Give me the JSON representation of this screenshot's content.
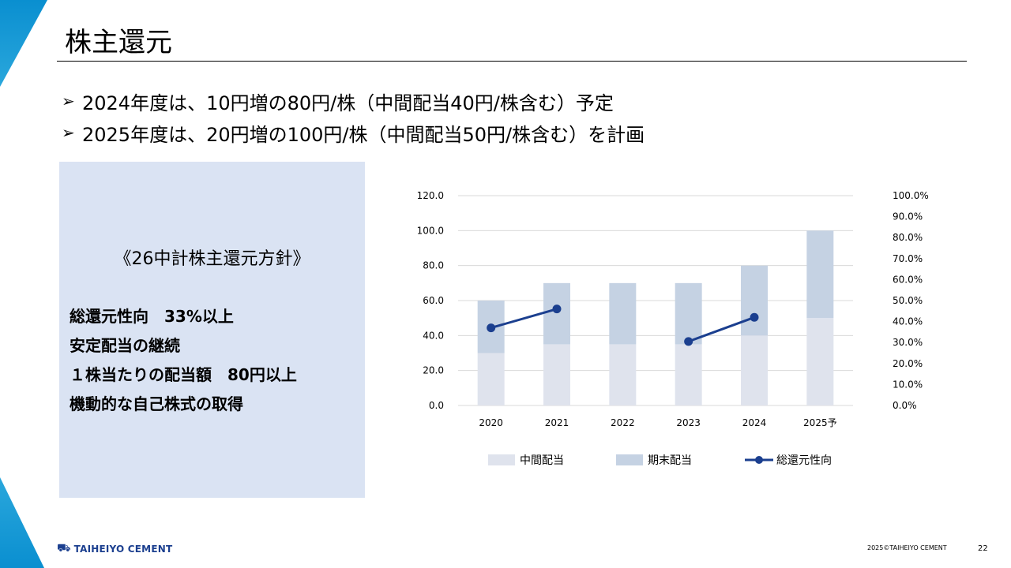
{
  "title": "株主還元",
  "bullets": [
    "2024年度は、10円増の80円/株（中間配当40円/株含む）予定",
    "2025年度は、20円増の100円/株（中間配当50円/株含む）を計画"
  ],
  "policy": {
    "title": "《26中計株主還元方針》",
    "items": [
      "総還元性向　33%以上",
      "安定配当の継続",
      "１株当たりの配当額　80円以上",
      "機動的な自己株式の取得"
    ]
  },
  "chart_data": {
    "type": "bar",
    "stacked": true,
    "categories": [
      "2020",
      "2021",
      "2022",
      "2023",
      "2024",
      "2025予"
    ],
    "series": [
      {
        "name": "中間配当",
        "type": "bar",
        "values": [
          30,
          35,
          35,
          35,
          40,
          50
        ],
        "color": "#dfe3ed"
      },
      {
        "name": "期末配当",
        "type": "bar",
        "values": [
          30,
          35,
          35,
          35,
          40,
          50
        ],
        "color": "#c5d2e3"
      },
      {
        "name": "総還元性向",
        "type": "line",
        "axis": "right",
        "values": [
          37,
          46,
          null,
          30.5,
          42,
          null
        ],
        "color": "#1b3f8f"
      }
    ],
    "y_left": {
      "ylim": [
        0,
        120
      ],
      "ticks": [
        "0.0",
        "20.0",
        "40.0",
        "60.0",
        "80.0",
        "100.0",
        "120.0"
      ]
    },
    "y_right": {
      "ylim": [
        0,
        100
      ],
      "ticks": [
        "0.0%",
        "10.0%",
        "20.0%",
        "30.0%",
        "40.0%",
        "50.0%",
        "60.0%",
        "70.0%",
        "80.0%",
        "90.0%",
        "100.0%"
      ]
    },
    "grid": true,
    "legend_position": "bottom"
  },
  "footer": {
    "logo_text": "TAIHEIYO CEMENT",
    "copyright": "2025©TAIHEIYO CEMENT",
    "page": "22"
  },
  "colors": {
    "accent": "#0a8fd0",
    "policy_bg": "#dae3f3",
    "line": "#1b3f8f"
  }
}
